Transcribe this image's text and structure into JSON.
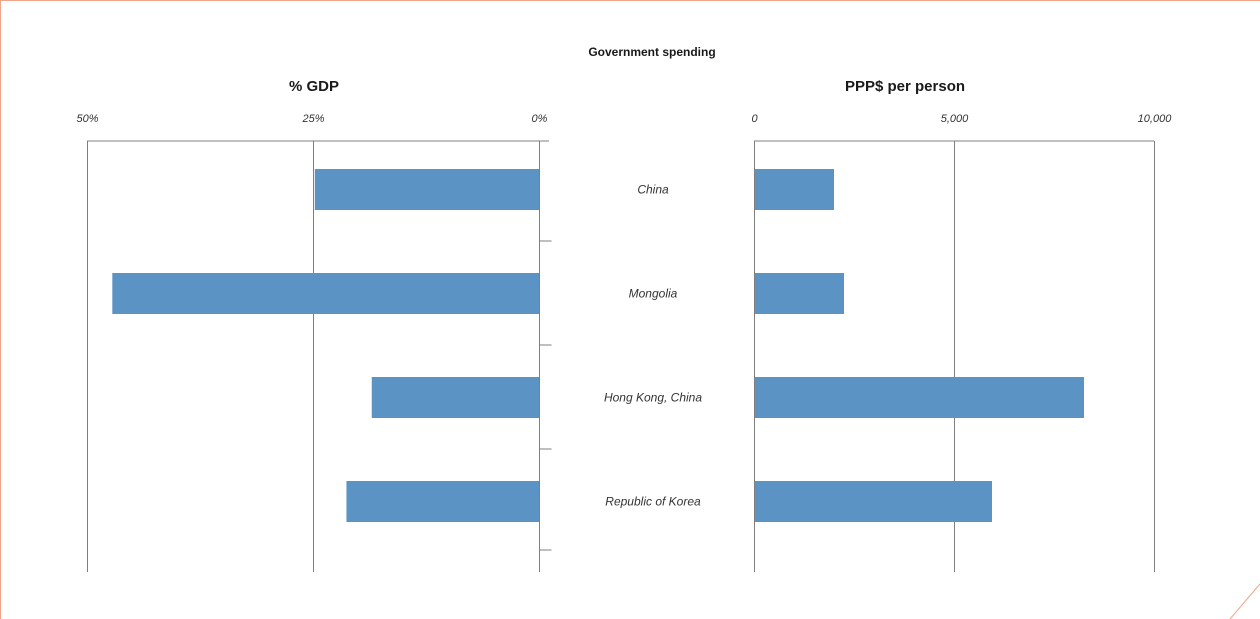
{
  "chart_data": {
    "type": "bar",
    "orientation": "horizontal",
    "title": "Government spending",
    "categories": [
      "China",
      "Mongolia",
      "Hong Kong, China",
      "Republic of Korea"
    ],
    "panels": [
      {
        "subtitle": "% GDP",
        "direction": "reversed",
        "xlim": [
          0,
          50
        ],
        "ticks": [
          50,
          25,
          0
        ],
        "tick_labels": [
          "50%",
          "25%",
          "0%"
        ],
        "values": [
          24.8,
          47.2,
          18.5,
          21.3
        ]
      },
      {
        "subtitle": "PPP$ per person",
        "direction": "normal",
        "xlim": [
          0,
          10000
        ],
        "ticks": [
          0,
          5000,
          10000
        ],
        "tick_labels": [
          "0",
          "5,000",
          "10,000"
        ],
        "values": [
          2000,
          2250,
          8250,
          5950
        ]
      }
    ],
    "colors": {
      "bar": "#5b93c4",
      "axis": "#7f7f7f",
      "frame": "#f0a58a"
    },
    "grid": true
  }
}
